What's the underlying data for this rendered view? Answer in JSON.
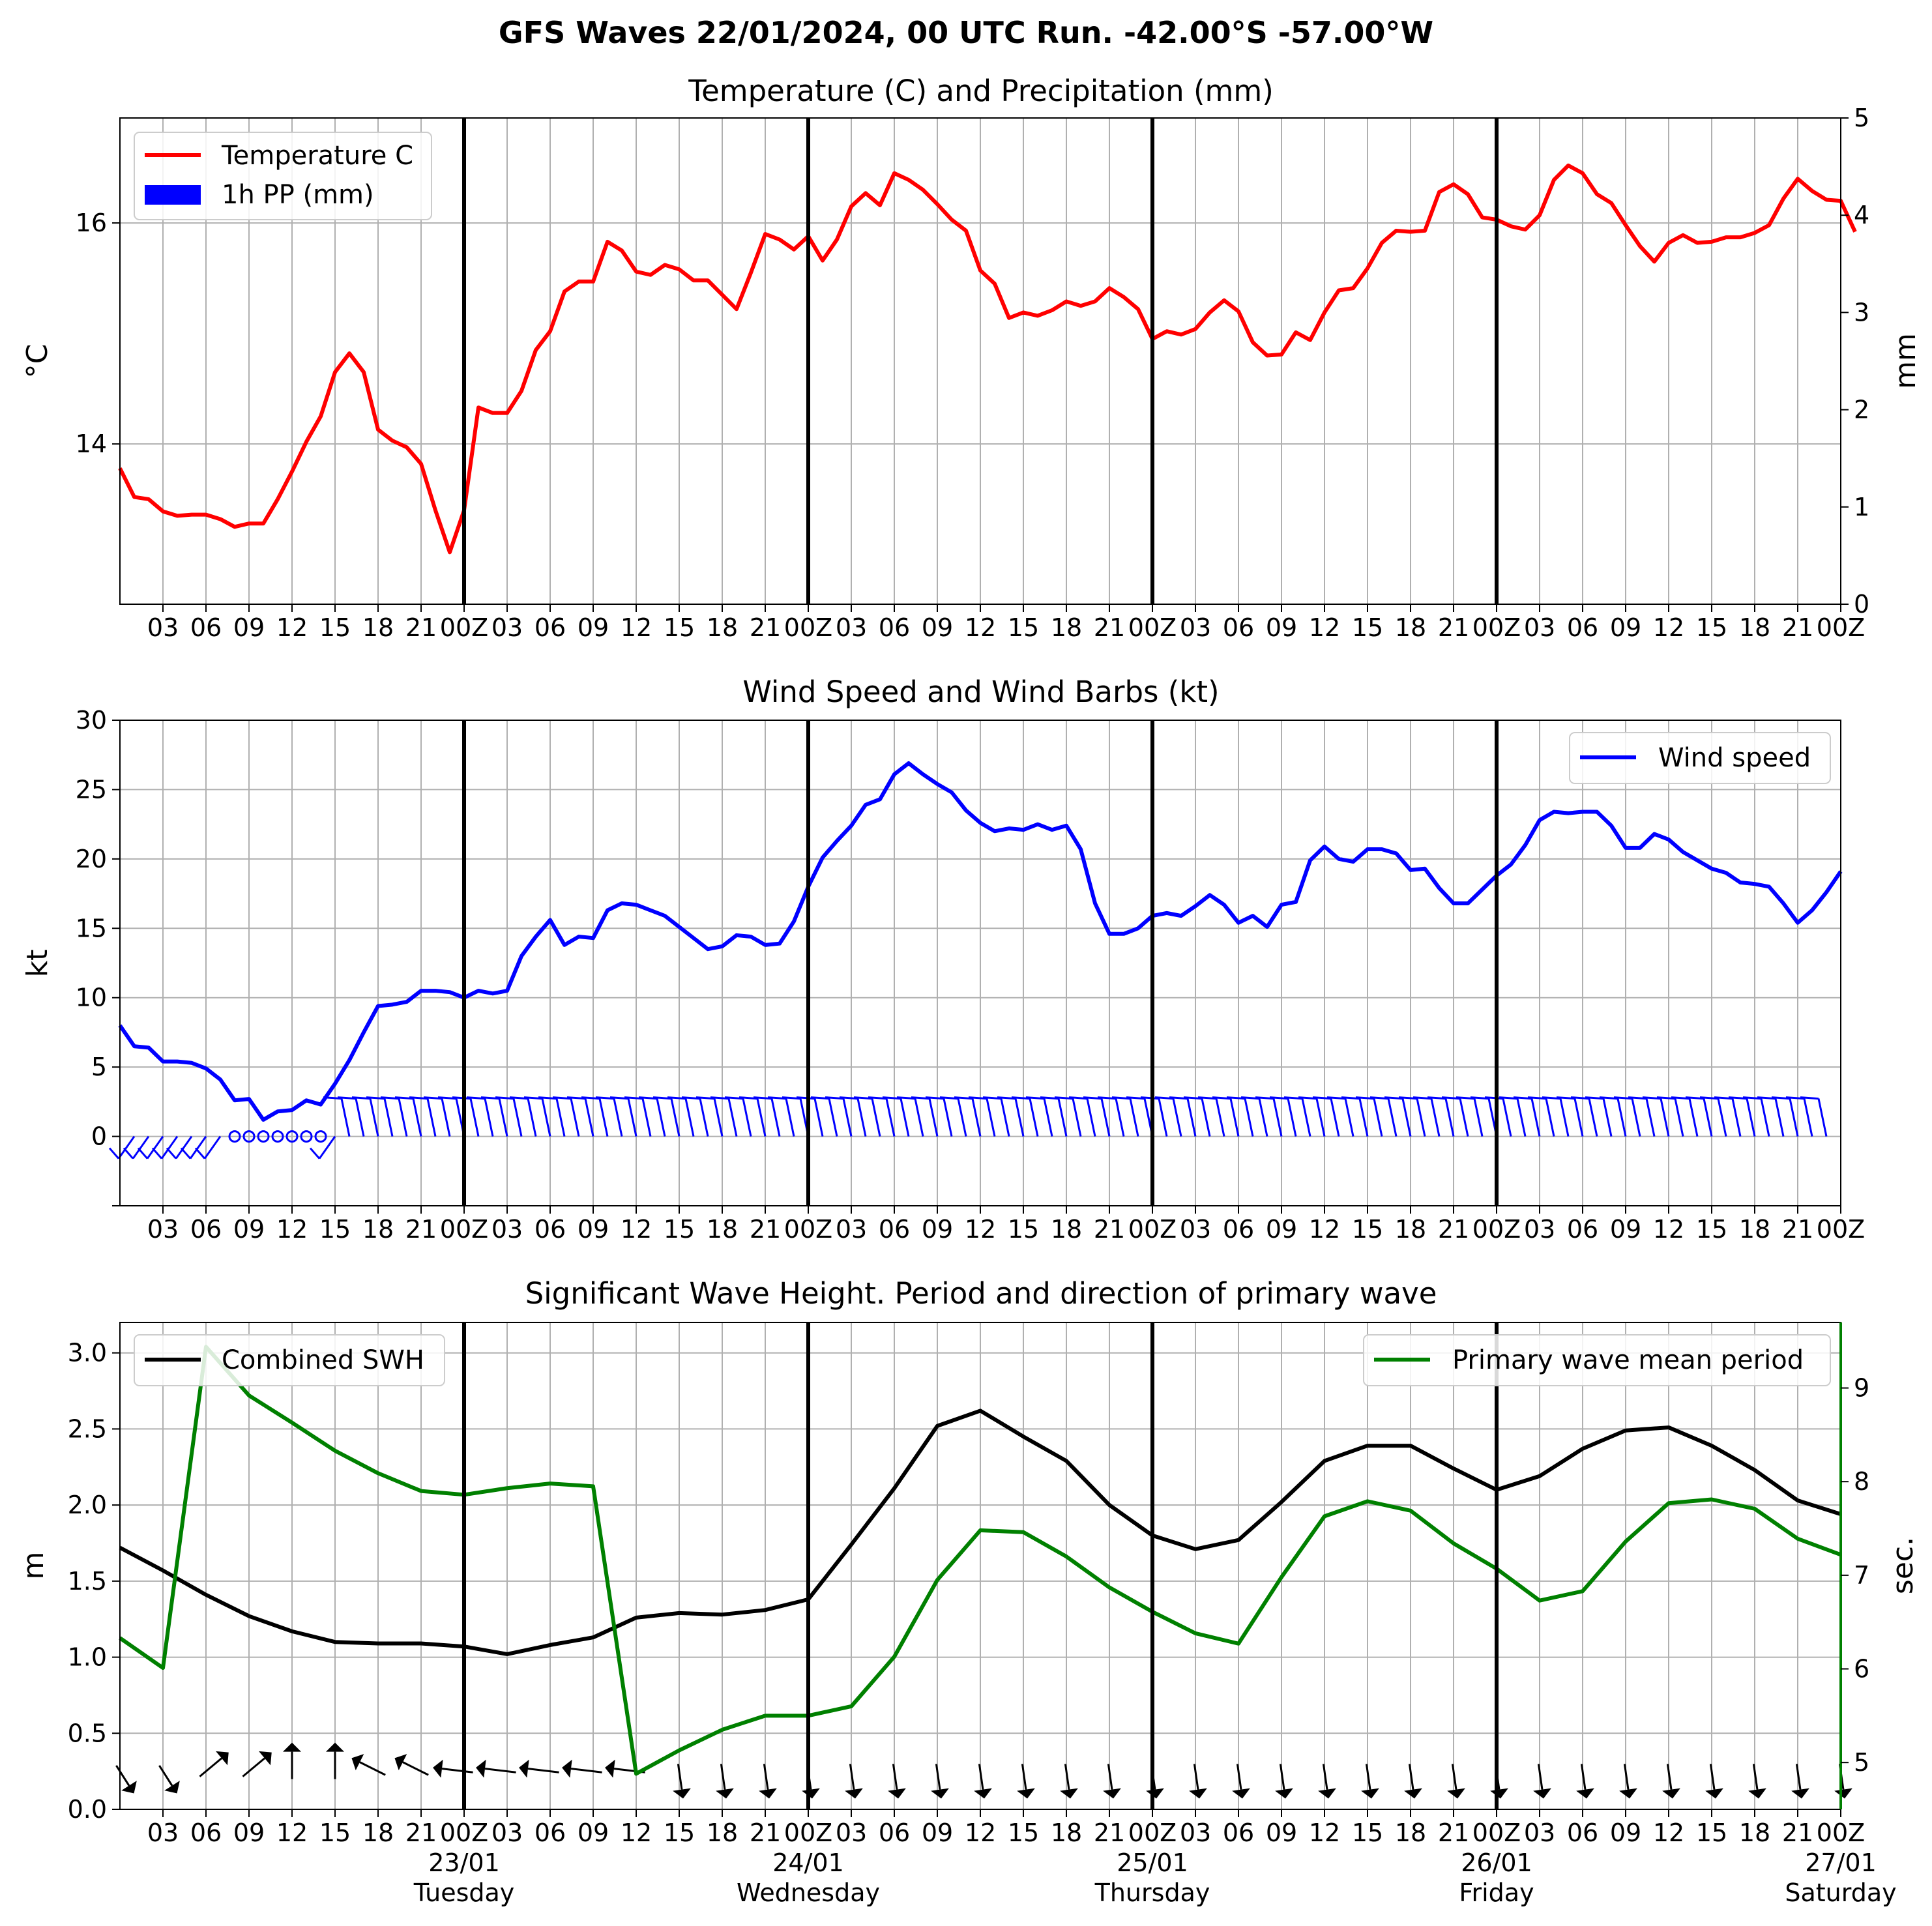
{
  "title": "GFS Waves 22/01/2024, 00 UTC Run. -42.00°S -57.00°W",
  "hour_ticks": [
    "03",
    "06",
    "09",
    "12",
    "15",
    "18",
    "21",
    "00Z",
    "03",
    "06",
    "09",
    "12",
    "15",
    "18",
    "21",
    "00Z",
    "03",
    "06",
    "09",
    "12",
    "15",
    "18",
    "21",
    "00Z",
    "03",
    "06",
    "09",
    "12",
    "15",
    "18",
    "21",
    "00Z",
    "03",
    "06",
    "09",
    "12",
    "15",
    "18",
    "21",
    "00Z"
  ],
  "day_ticks": [
    {
      "date": "23/01",
      "weekday": "Tuesday"
    },
    {
      "date": "24/01",
      "weekday": "Wednesday"
    },
    {
      "date": "25/01",
      "weekday": "Thursday"
    },
    {
      "date": "26/01",
      "weekday": "Friday"
    },
    {
      "date": "27/01",
      "weekday": "Saturday"
    }
  ],
  "colors": {
    "temperature": "#ff0000",
    "precip": "#0000ff",
    "wind": "#0000ff",
    "swh": "#000000",
    "period": "#008000",
    "grid": "#b0b0b0"
  },
  "chart_data": [
    {
      "type": "line",
      "title": "Temperature (C) and Precipitation (mm)",
      "xlabel": "",
      "ylabel": "°C",
      "ylabel_right": "mm",
      "x_unit": "hours since 22/01/2024 00 UTC",
      "ylim": [
        12.55,
        16.95
      ],
      "yticks": [
        14,
        16
      ],
      "y2lim": [
        0,
        5
      ],
      "y2ticks": [
        0,
        1,
        2,
        3,
        4,
        5
      ],
      "grid": true,
      "legend": "top-left",
      "series": [
        {
          "name": "Temperature C",
          "x_start": 0,
          "x_step": 1,
          "values": [
            13.78,
            13.52,
            13.5,
            13.39,
            13.35,
            13.36,
            13.36,
            13.32,
            13.25,
            13.28,
            13.28,
            13.5,
            13.75,
            14.02,
            14.25,
            14.65,
            14.82,
            14.65,
            14.13,
            14.03,
            13.97,
            13.82,
            13.4,
            13.02,
            13.4,
            14.33,
            14.28,
            14.28,
            14.48,
            14.85,
            15.02,
            15.38,
            15.47,
            15.47,
            15.83,
            15.75,
            15.56,
            15.53,
            15.62,
            15.58,
            15.48,
            15.48,
            15.35,
            15.22,
            15.55,
            15.9,
            15.85,
            15.76,
            15.88,
            15.66,
            15.85,
            16.15,
            16.27,
            16.16,
            16.45,
            16.39,
            16.3,
            16.17,
            16.03,
            15.93,
            15.57,
            15.45,
            15.14,
            15.19,
            15.16,
            15.21,
            15.29,
            15.25,
            15.29,
            15.41,
            15.33,
            15.22,
            14.95,
            15.02,
            14.99,
            15.04,
            15.19,
            15.3,
            15.2,
            14.92,
            14.8,
            14.81,
            15.01,
            14.94,
            15.19,
            15.39,
            15.41,
            15.59,
            15.82,
            15.93,
            15.92,
            15.93,
            16.28,
            16.35,
            16.26,
            16.05,
            16.03,
            15.97,
            15.94,
            16.07,
            16.39,
            16.52,
            16.45,
            16.26,
            16.18,
            15.98,
            15.79,
            15.65,
            15.82,
            15.89,
            15.82,
            15.83,
            15.87,
            15.87,
            15.91,
            15.98,
            16.22,
            16.4,
            16.29,
            16.21,
            16.2,
            15.92
          ]
        },
        {
          "name": "1h PP (mm)",
          "values": []
        }
      ]
    },
    {
      "type": "line",
      "title": "Wind Speed and Wind Barbs (kt)",
      "xlabel": "",
      "ylabel": "kt",
      "ylim": [
        -5,
        30
      ],
      "yticks": [
        0,
        5,
        10,
        15,
        20,
        25,
        30
      ],
      "grid": true,
      "legend": "top-right",
      "series": [
        {
          "name": "Wind speed",
          "x_start": 0,
          "x_step": 1,
          "values": [
            8.0,
            6.5,
            6.4,
            5.4,
            5.4,
            5.3,
            4.9,
            4.1,
            2.6,
            2.7,
            1.2,
            1.8,
            1.9,
            2.6,
            2.3,
            3.8,
            5.5,
            7.5,
            9.4,
            9.5,
            9.7,
            10.5,
            10.5,
            10.4,
            10.0,
            10.5,
            10.3,
            10.5,
            13.0,
            14.4,
            15.6,
            13.8,
            14.4,
            14.3,
            16.3,
            16.8,
            16.7,
            16.3,
            15.9,
            15.1,
            14.3,
            13.5,
            13.7,
            14.5,
            14.4,
            13.8,
            13.9,
            15.5,
            18.0,
            20.1,
            21.3,
            22.4,
            23.9,
            24.3,
            26.1,
            26.9,
            26.1,
            25.4,
            24.8,
            23.5,
            22.6,
            22.0,
            22.2,
            22.1,
            22.5,
            22.1,
            22.4,
            20.7,
            16.8,
            14.6,
            14.6,
            15.0,
            15.9,
            16.1,
            15.9,
            16.6,
            17.4,
            16.7,
            15.4,
            15.9,
            15.1,
            16.7,
            16.9,
            19.9,
            20.9,
            20.0,
            19.8,
            20.7,
            20.7,
            20.4,
            19.2,
            19.3,
            17.9,
            16.8,
            16.8,
            17.8,
            18.8,
            19.6,
            21.0,
            22.8,
            23.4,
            23.3,
            23.4,
            23.4,
            22.4,
            20.8,
            20.8,
            21.8,
            21.4,
            20.5,
            19.9,
            19.3,
            19.0,
            18.3,
            18.2,
            18.0,
            16.8,
            15.4,
            16.3,
            17.6,
            19.1
          ]
        }
      ],
      "annotations": [
        "wind barbs along y = 0 (hourly)"
      ]
    },
    {
      "type": "line",
      "title": "Significant Wave Height. Period and direction of primary wave",
      "xlabel": "",
      "ylabel": "m",
      "ylabel_right": "sec.",
      "ylim": [
        0,
        3.2
      ],
      "yticks": [
        0.0,
        0.5,
        1.0,
        1.5,
        2.0,
        2.5,
        3.0
      ],
      "y2lim": [
        4.5,
        9.7
      ],
      "y2ticks": [
        5,
        6,
        7,
        8,
        9
      ],
      "grid": true,
      "legend": [
        "top-left",
        "top-right"
      ],
      "series": [
        {
          "name": "Combined SWH",
          "axis": "left",
          "x_start": 0,
          "x_step": 3,
          "values": [
            1.72,
            1.57,
            1.41,
            1.27,
            1.17,
            1.1,
            1.09,
            1.09,
            1.07,
            1.02,
            1.08,
            1.13,
            1.26,
            1.29,
            1.28,
            1.31,
            1.38,
            1.74,
            2.11,
            2.52,
            2.62,
            2.45,
            2.29,
            2.0,
            1.8,
            1.71,
            1.77,
            2.02,
            2.29,
            2.39,
            2.39,
            2.24,
            2.1,
            2.19,
            2.37,
            2.49,
            2.51,
            2.39,
            2.23,
            2.03,
            1.94
          ]
        },
        {
          "name": "Primary wave mean period",
          "axis": "right",
          "x_start": 0,
          "x_step": 3,
          "values": [
            6.33,
            6.01,
            9.44,
            8.92,
            8.63,
            8.33,
            8.09,
            7.9,
            7.86,
            7.93,
            7.98,
            7.95,
            4.88,
            5.13,
            5.35,
            5.5,
            5.5,
            5.6,
            6.13,
            6.95,
            7.48,
            7.46,
            7.2,
            6.87,
            6.61,
            6.38,
            6.27,
            6.98,
            7.63,
            7.79,
            7.69,
            7.34,
            7.07,
            6.73,
            6.83,
            7.36,
            7.77,
            7.81,
            7.71,
            7.39,
            7.22
          ]
        }
      ],
      "annotations": [
        "primary wave direction arrows along y ≈ 0.25 m (3-hourly)"
      ]
    }
  ]
}
